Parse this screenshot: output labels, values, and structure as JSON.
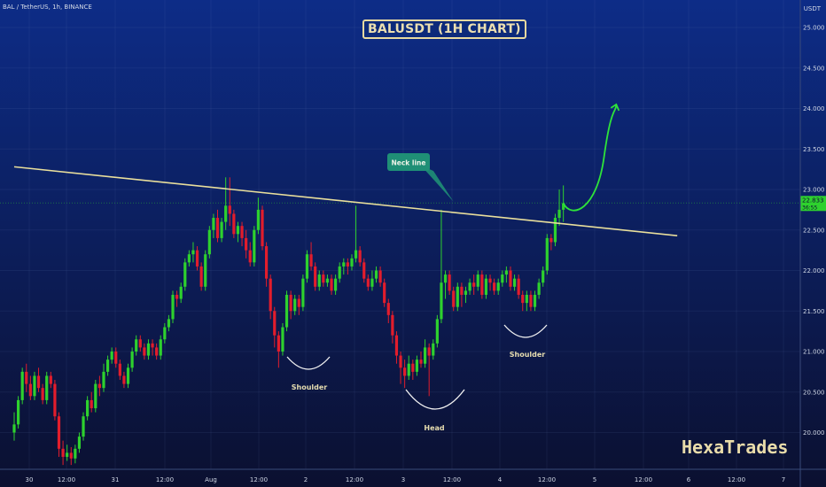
{
  "header": {
    "symbol_info": "BAL / TetherUS, 1h, BINANCE",
    "currency": "USDT"
  },
  "brand": {
    "watermark": "HexaTrades"
  },
  "colors": {
    "background_top": "#0d2c87",
    "background_bottom": "#0b1030",
    "candle_up": "#2ed12e",
    "candle_down": "#e21d2c",
    "neckline": "#e9df9c",
    "arrow": "#2ee33a",
    "annotation": "#e6ddb0",
    "callout_bg": "#1f8f76"
  },
  "chart_data": {
    "type": "candlestick",
    "title": "BALUSDT (1H CHART)",
    "ylim": [
      19.6,
      25.25
    ],
    "y_ticks": [
      "25.000",
      "24.500",
      "24.000",
      "23.500",
      "23.000",
      "22.500",
      "22.000",
      "21.500",
      "21.000",
      "20.500",
      "20.000"
    ],
    "x_ticks": [
      "30",
      "12:00",
      "31",
      "12:00",
      "Aug",
      "12:00",
      "2",
      "12:00",
      "3",
      "12:00",
      "4",
      "12:00",
      "5",
      "12:00",
      "6",
      "12:00",
      "7"
    ],
    "last_price": "22.833",
    "last_price_sub": "36:55",
    "pattern_labels": [
      "Shoulder",
      "Head",
      "Shoulder"
    ],
    "callout": "Neck line",
    "neckline_points": [
      [
        0,
        23.28
      ],
      [
        163,
        22.43
      ]
    ],
    "candles": [
      [
        0,
        20.0,
        20.1,
        19.9,
        20.25
      ],
      [
        1,
        20.1,
        20.4,
        20.05,
        20.45
      ],
      [
        2,
        20.4,
        20.75,
        20.35,
        20.8
      ],
      [
        3,
        20.75,
        20.6,
        20.5,
        20.85
      ],
      [
        4,
        20.6,
        20.45,
        20.4,
        20.7
      ],
      [
        5,
        20.45,
        20.7,
        20.4,
        20.75
      ],
      [
        6,
        20.7,
        20.55,
        20.5,
        20.8
      ],
      [
        7,
        20.55,
        20.4,
        20.35,
        20.6
      ],
      [
        8,
        20.4,
        20.7,
        20.35,
        20.75
      ],
      [
        9,
        20.7,
        20.6,
        20.55,
        20.75
      ],
      [
        10,
        20.6,
        20.2,
        20.15,
        20.65
      ],
      [
        11,
        20.2,
        19.8,
        19.7,
        20.25
      ],
      [
        12,
        19.8,
        19.7,
        19.6,
        19.9
      ],
      [
        13,
        19.7,
        19.75,
        19.65,
        19.85
      ],
      [
        14,
        19.75,
        19.68,
        19.6,
        19.82
      ],
      [
        15,
        19.68,
        19.8,
        19.62,
        19.85
      ],
      [
        16,
        19.8,
        19.95,
        19.75,
        20.0
      ],
      [
        17,
        19.95,
        20.2,
        19.9,
        20.25
      ],
      [
        18,
        20.2,
        20.4,
        20.15,
        20.45
      ],
      [
        19,
        20.4,
        20.3,
        20.25,
        20.5
      ],
      [
        20,
        20.3,
        20.6,
        20.25,
        20.65
      ],
      [
        21,
        20.6,
        20.55,
        20.45,
        20.7
      ],
      [
        22,
        20.55,
        20.75,
        20.5,
        20.85
      ],
      [
        23,
        20.75,
        20.9,
        20.7,
        20.95
      ],
      [
        24,
        20.9,
        21.0,
        20.85,
        21.05
      ],
      [
        25,
        21.0,
        20.85,
        20.8,
        21.05
      ],
      [
        26,
        20.85,
        20.7,
        20.65,
        20.9
      ],
      [
        27,
        20.7,
        20.6,
        20.55,
        20.75
      ],
      [
        28,
        20.6,
        20.8,
        20.55,
        20.85
      ],
      [
        29,
        20.8,
        21.0,
        20.75,
        21.05
      ],
      [
        30,
        21.0,
        21.15,
        20.95,
        21.2
      ],
      [
        31,
        21.15,
        21.05,
        21.0,
        21.2
      ],
      [
        32,
        21.05,
        20.95,
        20.9,
        21.1
      ],
      [
        33,
        20.95,
        21.1,
        20.9,
        21.15
      ],
      [
        34,
        21.1,
        21.05,
        20.95,
        21.15
      ],
      [
        35,
        21.05,
        20.95,
        20.9,
        21.1
      ],
      [
        36,
        20.95,
        21.15,
        20.9,
        21.2
      ],
      [
        37,
        21.15,
        21.3,
        21.1,
        21.35
      ],
      [
        38,
        21.3,
        21.4,
        21.25,
        21.45
      ],
      [
        39,
        21.4,
        21.7,
        21.35,
        21.75
      ],
      [
        40,
        21.7,
        21.65,
        21.55,
        21.75
      ],
      [
        41,
        21.65,
        21.8,
        21.6,
        21.85
      ],
      [
        42,
        21.8,
        22.1,
        21.75,
        22.15
      ],
      [
        43,
        22.1,
        22.2,
        22.05,
        22.25
      ],
      [
        44,
        22.2,
        22.25,
        22.1,
        22.35
      ],
      [
        45,
        22.25,
        22.05,
        22.0,
        22.3
      ],
      [
        46,
        22.05,
        21.8,
        21.75,
        22.1
      ],
      [
        47,
        21.8,
        22.2,
        21.75,
        22.25
      ],
      [
        48,
        22.2,
        22.5,
        22.15,
        22.55
      ],
      [
        49,
        22.5,
        22.65,
        22.4,
        22.7
      ],
      [
        50,
        22.65,
        22.4,
        22.35,
        22.75
      ],
      [
        51,
        22.4,
        22.6,
        22.35,
        22.65
      ],
      [
        52,
        22.6,
        22.8,
        22.5,
        23.15
      ],
      [
        53,
        22.8,
        22.7,
        22.55,
        23.15
      ],
      [
        54,
        22.7,
        22.45,
        22.4,
        22.75
      ],
      [
        55,
        22.45,
        22.55,
        22.35,
        22.6
      ],
      [
        56,
        22.55,
        22.4,
        22.3,
        22.6
      ],
      [
        57,
        22.4,
        22.25,
        22.15,
        22.5
      ],
      [
        58,
        22.25,
        22.1,
        22.05,
        22.35
      ],
      [
        59,
        22.1,
        22.5,
        22.05,
        22.55
      ],
      [
        60,
        22.5,
        22.75,
        22.45,
        22.9
      ],
      [
        61,
        22.75,
        22.3,
        22.25,
        22.8
      ],
      [
        62,
        22.3,
        21.9,
        21.8,
        22.35
      ],
      [
        63,
        21.9,
        21.5,
        21.4,
        21.95
      ],
      [
        64,
        21.5,
        21.2,
        21.05,
        21.55
      ],
      [
        65,
        21.2,
        21.0,
        20.8,
        21.25
      ],
      [
        66,
        21.0,
        21.3,
        20.95,
        21.35
      ],
      [
        67,
        21.3,
        21.7,
        21.25,
        21.75
      ],
      [
        68,
        21.7,
        21.5,
        21.4,
        21.75
      ],
      [
        69,
        21.5,
        21.65,
        21.45,
        21.7
      ],
      [
        70,
        21.65,
        21.55,
        21.45,
        21.7
      ],
      [
        71,
        21.55,
        21.9,
        21.5,
        21.95
      ],
      [
        72,
        21.9,
        22.2,
        21.85,
        22.25
      ],
      [
        73,
        22.2,
        22.05,
        22.0,
        22.35
      ],
      [
        74,
        22.05,
        21.8,
        21.75,
        22.1
      ],
      [
        75,
        21.8,
        21.95,
        21.75,
        22.0
      ],
      [
        76,
        21.95,
        21.85,
        21.8,
        22.0
      ],
      [
        77,
        21.85,
        21.9,
        21.8,
        21.95
      ],
      [
        78,
        21.9,
        21.75,
        21.7,
        21.95
      ],
      [
        79,
        21.75,
        21.9,
        21.7,
        21.95
      ],
      [
        80,
        21.9,
        22.05,
        21.85,
        22.1
      ],
      [
        81,
        22.05,
        22.1,
        21.95,
        22.15
      ],
      [
        82,
        22.1,
        22.05,
        21.95,
        22.15
      ],
      [
        83,
        22.05,
        22.15,
        22.0,
        22.2
      ],
      [
        84,
        22.15,
        22.25,
        22.1,
        22.8
      ],
      [
        85,
        22.25,
        22.1,
        22.05,
        22.3
      ],
      [
        86,
        22.1,
        21.9,
        21.85,
        22.15
      ],
      [
        87,
        21.9,
        21.8,
        21.75,
        21.95
      ],
      [
        88,
        21.8,
        21.9,
        21.75,
        22.0
      ],
      [
        89,
        21.9,
        22.0,
        21.85,
        22.05
      ],
      [
        90,
        22.0,
        21.85,
        21.8,
        22.05
      ],
      [
        91,
        21.85,
        21.6,
        21.55,
        21.9
      ],
      [
        92,
        21.6,
        21.45,
        21.35,
        21.65
      ],
      [
        93,
        21.45,
        21.2,
        21.1,
        21.5
      ],
      [
        94,
        21.2,
        20.95,
        20.85,
        21.25
      ],
      [
        95,
        20.95,
        20.8,
        20.6,
        21.0
      ],
      [
        96,
        20.8,
        20.7,
        20.55,
        20.9
      ],
      [
        97,
        20.7,
        20.85,
        20.65,
        20.95
      ],
      [
        98,
        20.85,
        20.75,
        20.65,
        20.9
      ],
      [
        99,
        20.75,
        20.9,
        20.7,
        20.95
      ],
      [
        100,
        20.9,
        20.85,
        20.8,
        21.0
      ],
      [
        101,
        20.85,
        21.05,
        20.8,
        21.15
      ],
      [
        102,
        21.05,
        20.95,
        20.45,
        21.1
      ],
      [
        103,
        20.95,
        21.1,
        20.9,
        21.15
      ],
      [
        104,
        21.1,
        21.4,
        21.05,
        21.45
      ],
      [
        105,
        21.4,
        21.85,
        21.35,
        22.75
      ],
      [
        106,
        21.85,
        21.95,
        21.65,
        22.0
      ],
      [
        107,
        21.95,
        21.75,
        21.7,
        22.0
      ],
      [
        108,
        21.75,
        21.55,
        21.5,
        21.8
      ],
      [
        109,
        21.55,
        21.8,
        21.5,
        21.85
      ],
      [
        110,
        21.8,
        21.7,
        21.55,
        21.85
      ],
      [
        111,
        21.7,
        21.75,
        21.6,
        21.8
      ],
      [
        112,
        21.75,
        21.85,
        21.7,
        21.9
      ],
      [
        113,
        21.85,
        21.8,
        21.7,
        21.95
      ],
      [
        114,
        21.8,
        21.95,
        21.75,
        22.0
      ],
      [
        115,
        21.95,
        21.7,
        21.65,
        22.0
      ],
      [
        116,
        21.7,
        21.9,
        21.65,
        21.95
      ],
      [
        117,
        21.9,
        21.85,
        21.75,
        21.95
      ],
      [
        118,
        21.85,
        21.75,
        21.7,
        21.9
      ],
      [
        119,
        21.75,
        21.85,
        21.7,
        21.9
      ],
      [
        120,
        21.85,
        21.95,
        21.8,
        22.0
      ],
      [
        121,
        21.95,
        22.0,
        21.85,
        22.05
      ],
      [
        122,
        22.0,
        21.8,
        21.75,
        22.05
      ],
      [
        123,
        21.8,
        21.9,
        21.75,
        21.95
      ],
      [
        124,
        21.9,
        21.7,
        21.65,
        21.95
      ],
      [
        125,
        21.7,
        21.6,
        21.5,
        21.75
      ],
      [
        126,
        21.6,
        21.7,
        21.5,
        21.75
      ],
      [
        127,
        21.7,
        21.55,
        21.5,
        21.75
      ],
      [
        128,
        21.55,
        21.7,
        21.5,
        21.75
      ],
      [
        129,
        21.7,
        21.85,
        21.65,
        21.9
      ],
      [
        130,
        21.85,
        22.0,
        21.8,
        22.05
      ],
      [
        131,
        22.0,
        22.4,
        21.95,
        22.45
      ],
      [
        132,
        22.4,
        22.35,
        22.25,
        22.45
      ],
      [
        133,
        22.35,
        22.65,
        22.3,
        22.7
      ],
      [
        134,
        22.65,
        22.75,
        22.55,
        23.0
      ],
      [
        135,
        22.75,
        22.83,
        22.6,
        23.05
      ]
    ],
    "arrow_points": [
      [
        135,
        22.83
      ],
      [
        137,
        22.72
      ],
      [
        141,
        22.85
      ],
      [
        145,
        23.4
      ],
      [
        148,
        24.05
      ]
    ]
  }
}
